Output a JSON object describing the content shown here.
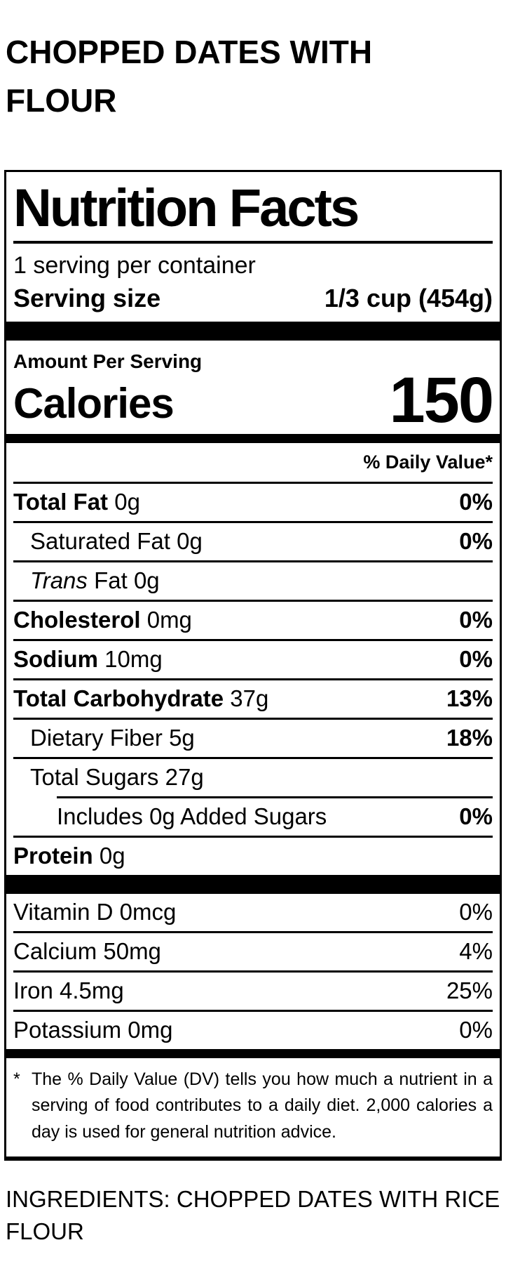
{
  "page": {
    "title": "CHOPPED DATES WITH FLOUR",
    "ingredients": "INGREDIENTS: CHOPPED DATES WITH RICE FLOUR"
  },
  "label": {
    "heading": "Nutrition Facts",
    "servings_per_container": "1 serving per container",
    "serving_size_label": "Serving size",
    "serving_size_value": "1/3 cup (454g)",
    "amount_per_serving": "Amount Per Serving",
    "calories_label": "Calories",
    "calories_value": "150",
    "daily_value_header": "% Daily Value*",
    "rows": [
      {
        "name": "Total Fat",
        "amount": "0g",
        "dv": "0%"
      },
      {
        "name": "Saturated Fat",
        "amount": "0g",
        "dv": "0%"
      },
      {
        "name_italic": "Trans",
        "name_rest": "Fat",
        "amount": "0g",
        "dv": ""
      },
      {
        "name": "Cholesterol",
        "amount": "0mg",
        "dv": "0%"
      },
      {
        "name": "Sodium",
        "amount": "10mg",
        "dv": "0%"
      },
      {
        "name": "Total Carbohydrate",
        "amount": "37g",
        "dv": "13%"
      },
      {
        "name": "Dietary Fiber",
        "amount": "5g",
        "dv": "18%"
      },
      {
        "name": "Total Sugars",
        "amount": "27g",
        "dv": ""
      },
      {
        "name": "Includes 0g Added Sugars",
        "amount": "",
        "dv": "0%"
      },
      {
        "name": "Protein",
        "amount": "0g",
        "dv": ""
      }
    ],
    "vitamins": [
      {
        "name": "Vitamin D 0mcg",
        "dv": "0%"
      },
      {
        "name": "Calcium 50mg",
        "dv": "4%"
      },
      {
        "name": "Iron 4.5mg",
        "dv": "25%"
      },
      {
        "name": "Potassium 0mg",
        "dv": "0%"
      }
    ],
    "footnote_marker": "*",
    "footnote": "The % Daily Value (DV) tells you how much a nutrient in a serving of food contributes to a daily diet. 2,000 calories a day is used for general nutrition advice."
  },
  "colors": {
    "ink": "#000000",
    "background": "#ffffff"
  }
}
